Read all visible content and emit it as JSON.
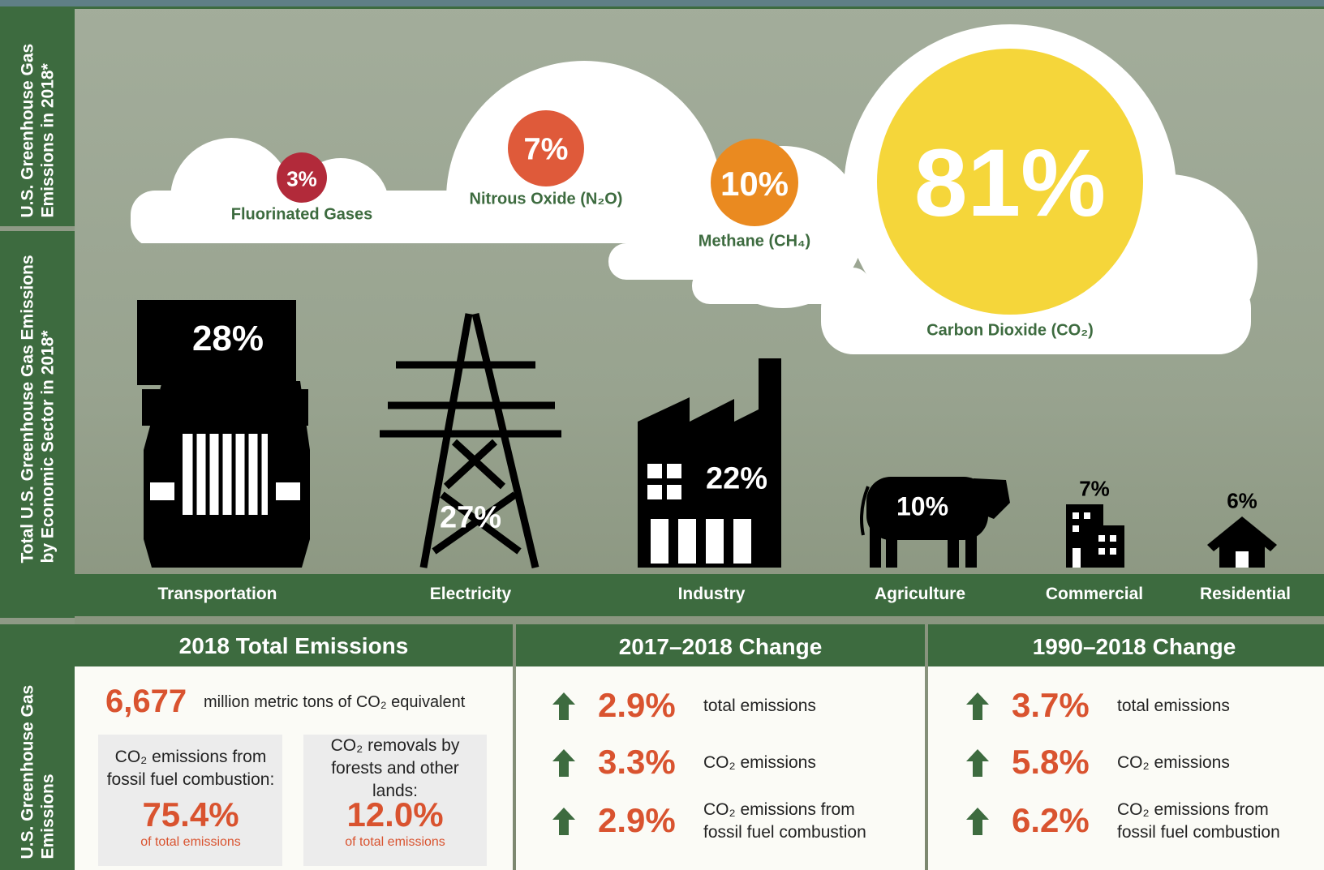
{
  "side_labels": [
    "U.S. Greenhouse Gas Emissions in 2018*",
    "Total U.S. Greenhouse Gas Emissions by Economic Sector in 2018*",
    "U.S. Greenhouse Gas Emissions"
  ],
  "gases": [
    {
      "share": "3%",
      "name": "Fluorinated Gases"
    },
    {
      "share": "7%",
      "name": "Nitrous Oxide (N₂O)"
    },
    {
      "share": "10%",
      "name": "Methane (CH₄)"
    },
    {
      "share": "81%",
      "name": "Carbon Dioxide (CO₂)"
    }
  ],
  "sectors": [
    {
      "share": "28%",
      "name": "Transportation"
    },
    {
      "share": "27%",
      "name": "Electricity"
    },
    {
      "share": "22%",
      "name": "Industry"
    },
    {
      "share": "10%",
      "name": "Agriculture"
    },
    {
      "share": "7%",
      "name": "Commercial"
    },
    {
      "share": "6%",
      "name": "Residential"
    }
  ],
  "total_emissions": {
    "title": "2018 Total Emissions",
    "amount": "6,677",
    "unit": "million metric tons of CO₂ equivalent",
    "boxes": [
      {
        "label": "CO₂ emissions from fossil fuel combustion:",
        "value": "75.4%",
        "note": "of total emissions"
      },
      {
        "label": "CO₂ removals by forests and other lands:",
        "value": "12.0%",
        "note": "of total emissions"
      }
    ]
  },
  "changes": [
    {
      "title": "2017–2018 Change",
      "rows": [
        {
          "value": "2.9%",
          "label": "total emissions"
        },
        {
          "value": "3.3%",
          "label": "CO₂ emissions"
        },
        {
          "value": "2.9%",
          "label": "CO₂ emissions from fossil fuel combustion"
        }
      ]
    },
    {
      "title": "1990–2018 Change",
      "rows": [
        {
          "value": "3.7%",
          "label": "total emissions"
        },
        {
          "value": "5.8%",
          "label": "CO₂ emissions"
        },
        {
          "value": "6.2%",
          "label": "CO₂ emissions from fossil fuel combustion"
        }
      ]
    }
  ]
}
